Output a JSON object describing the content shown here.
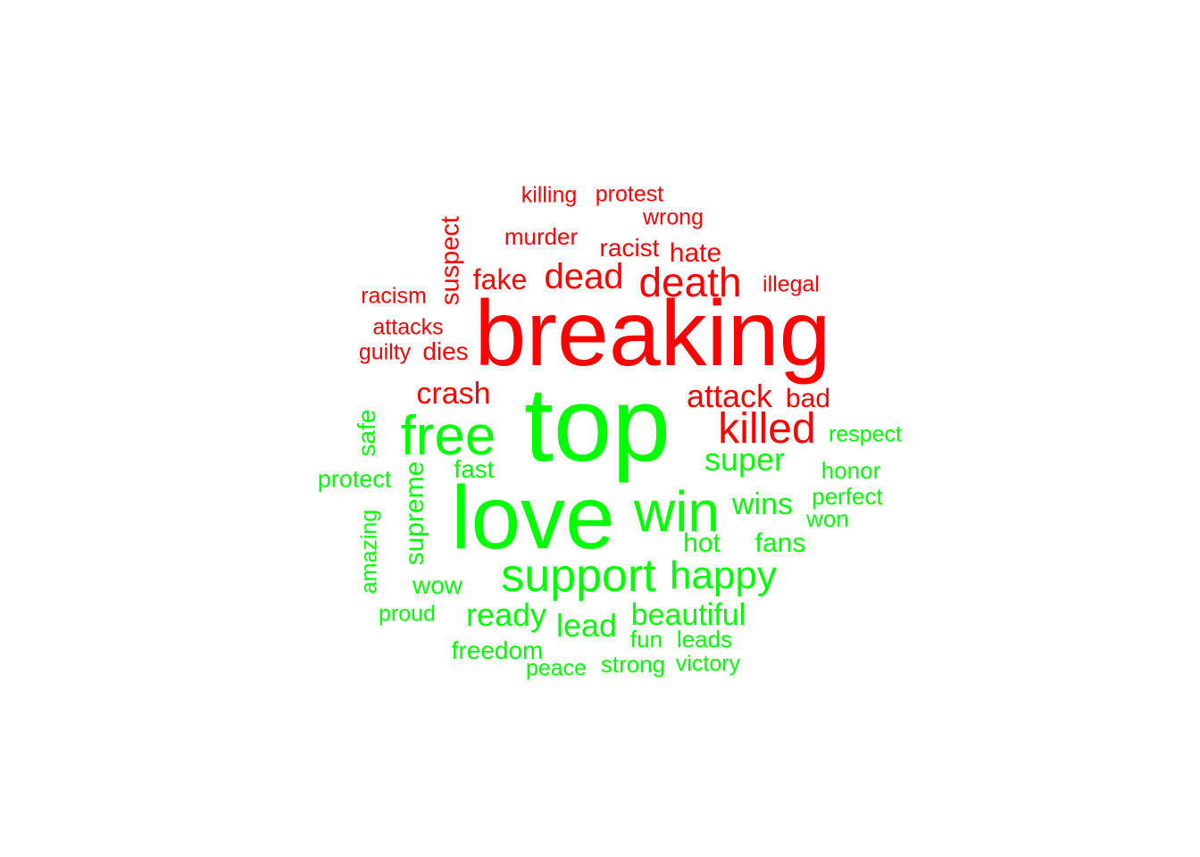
{
  "colors": {
    "negative": "#ff0000",
    "positive": "#00ff00",
    "background": "#ffffff"
  },
  "words": {
    "negative": [
      "breaking",
      "killed",
      "death",
      "dead",
      "attack",
      "crash",
      "fake",
      "suspect",
      "murder",
      "racist",
      "hate",
      "killing",
      "protest",
      "wrong",
      "illegal",
      "racism",
      "attacks",
      "guilty",
      "dies",
      "bad"
    ],
    "positive": [
      "top",
      "love",
      "free",
      "win",
      "support",
      "happy",
      "super",
      "wins",
      "beautiful",
      "ready",
      "lead",
      "supreme",
      "safe",
      "fast",
      "protect",
      "respect",
      "honor",
      "perfect",
      "won",
      "hot",
      "fans",
      "amazing",
      "wow",
      "proud",
      "freedom",
      "fun",
      "leads",
      "peace",
      "strong",
      "victory"
    ]
  }
}
